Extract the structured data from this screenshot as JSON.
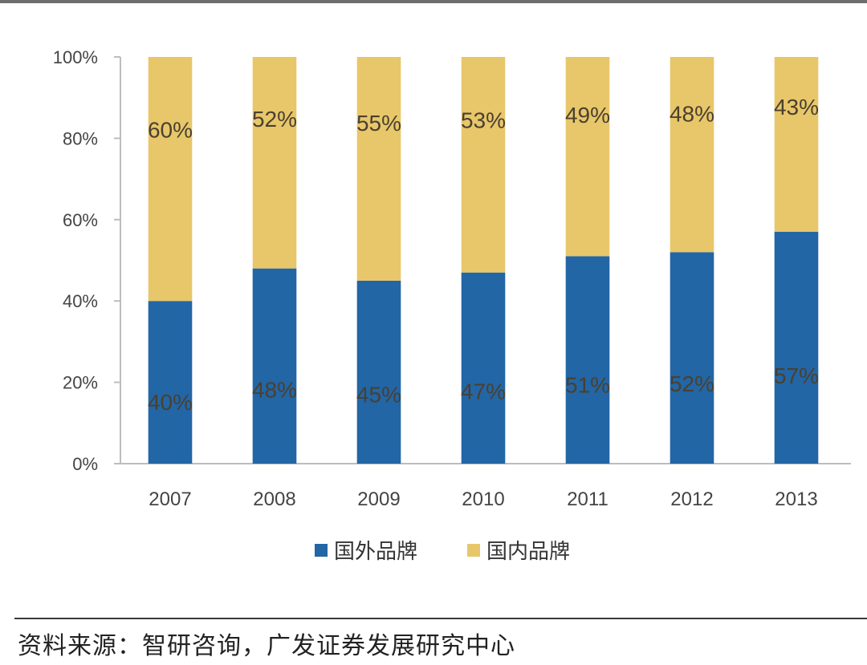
{
  "source_note": "资料来源：智研咨询，广发证券发展研究中心",
  "chart_data": {
    "type": "bar",
    "stacked": true,
    "categories": [
      "2007",
      "2008",
      "2009",
      "2010",
      "2011",
      "2012",
      "2013"
    ],
    "series": [
      {
        "name": "国外品牌",
        "color": "#2266A6",
        "values": [
          40,
          48,
          45,
          47,
          51,
          52,
          57
        ],
        "labels": [
          "40%",
          "48%",
          "45%",
          "47%",
          "51%",
          "52%",
          "57%"
        ]
      },
      {
        "name": "国内品牌",
        "color": "#E8C76A",
        "values": [
          60,
          52,
          55,
          53,
          49,
          48,
          43
        ],
        "labels": [
          "60%",
          "52%",
          "55%",
          "53%",
          "49%",
          "48%",
          "43%"
        ]
      }
    ],
    "yticks": [
      "0%",
      "20%",
      "40%",
      "60%",
      "80%",
      "100%"
    ],
    "ylim": [
      0,
      100
    ],
    "grid": false,
    "legend_position": "bottom"
  }
}
